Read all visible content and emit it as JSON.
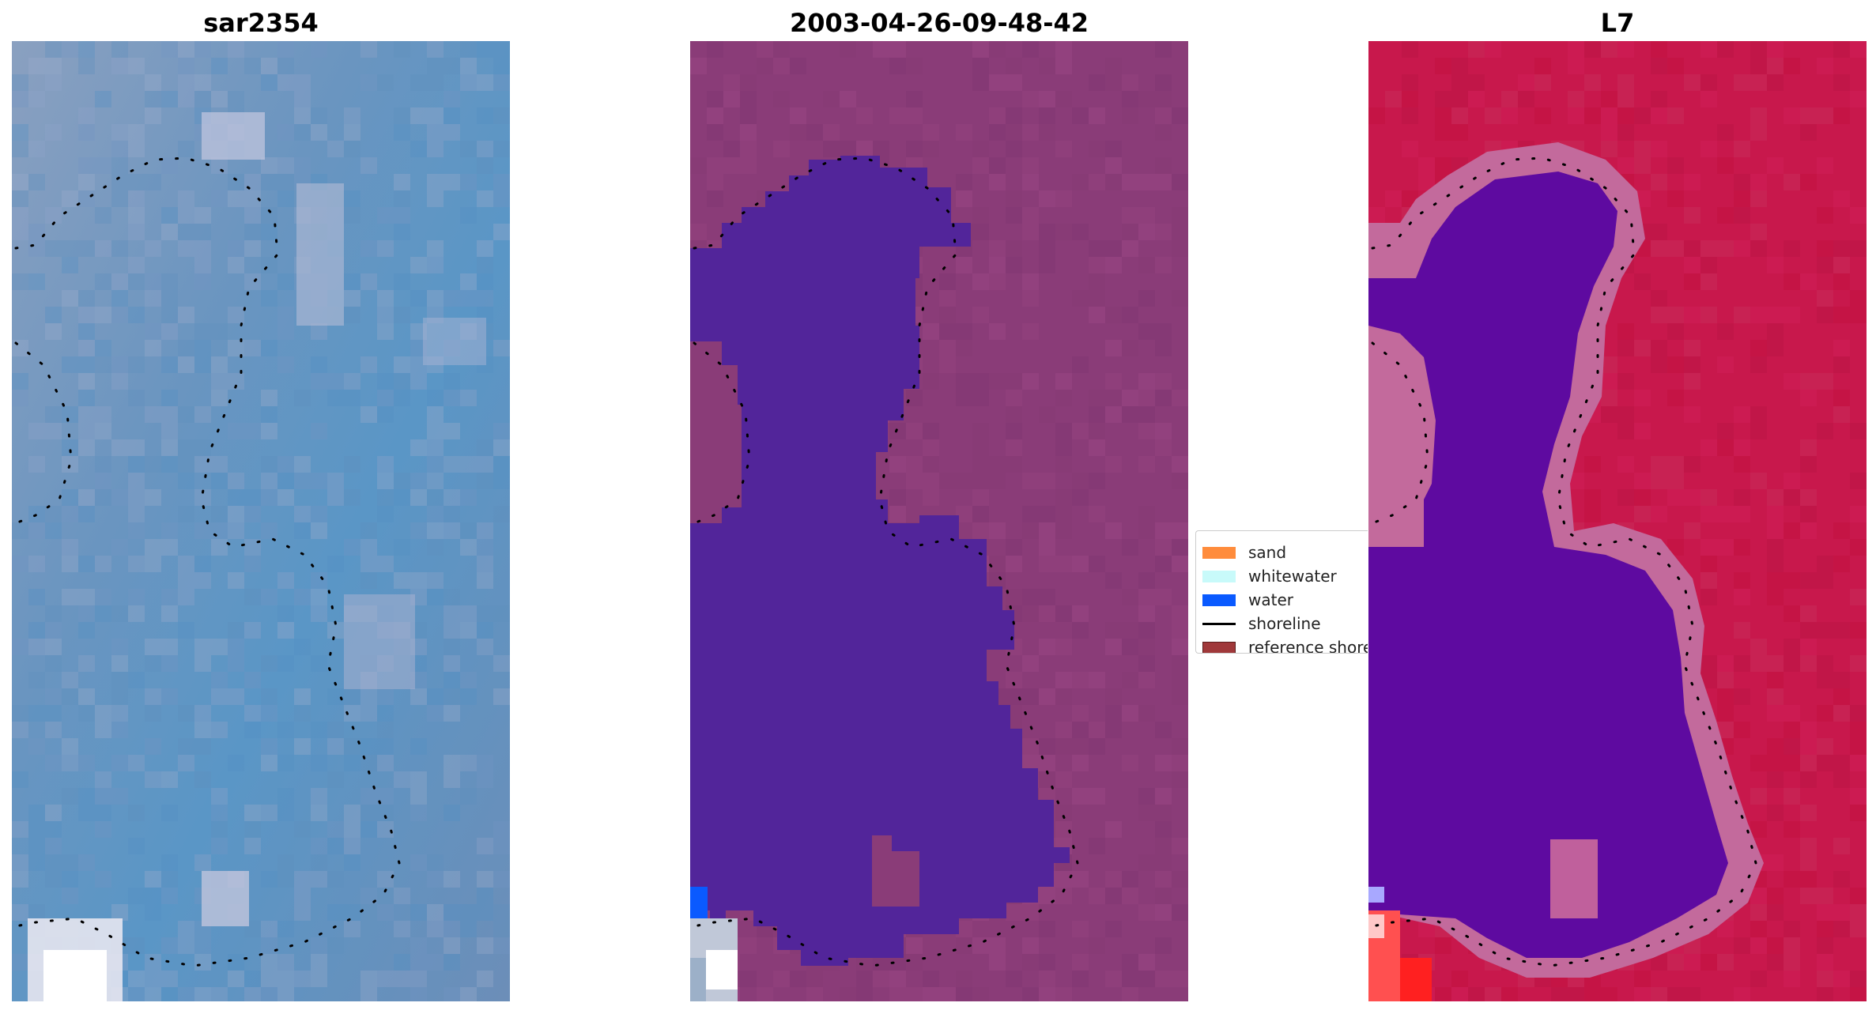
{
  "panels": [
    {
      "title": "sar2354"
    },
    {
      "title": "2003-04-26-09-48-42"
    },
    {
      "title": "L7"
    }
  ],
  "legend": {
    "items": [
      {
        "label": "sand",
        "color": "#ff8c3c",
        "kind": "patch"
      },
      {
        "label": "whitewater",
        "color": "#c8fafa",
        "kind": "patch"
      },
      {
        "label": "water",
        "color": "#0a5aff",
        "kind": "patch"
      },
      {
        "label": "shoreline",
        "color": "#000000",
        "kind": "line"
      },
      {
        "label": "reference shoreline",
        "color": "#a0383a",
        "kind": "patch"
      }
    ]
  },
  "colors": {
    "rgb_water": "#5a8ab8",
    "rgb_land": "#7a9ac0",
    "rgb_surf": "#e8e8f0",
    "class_water_overlay": "#52259a",
    "class_land": "#8a3c78",
    "class_bright": "#c0c8d8",
    "index_positive": "#5e0aa0",
    "index_negative": "#c8184c",
    "index_bright": "#ff3030"
  }
}
